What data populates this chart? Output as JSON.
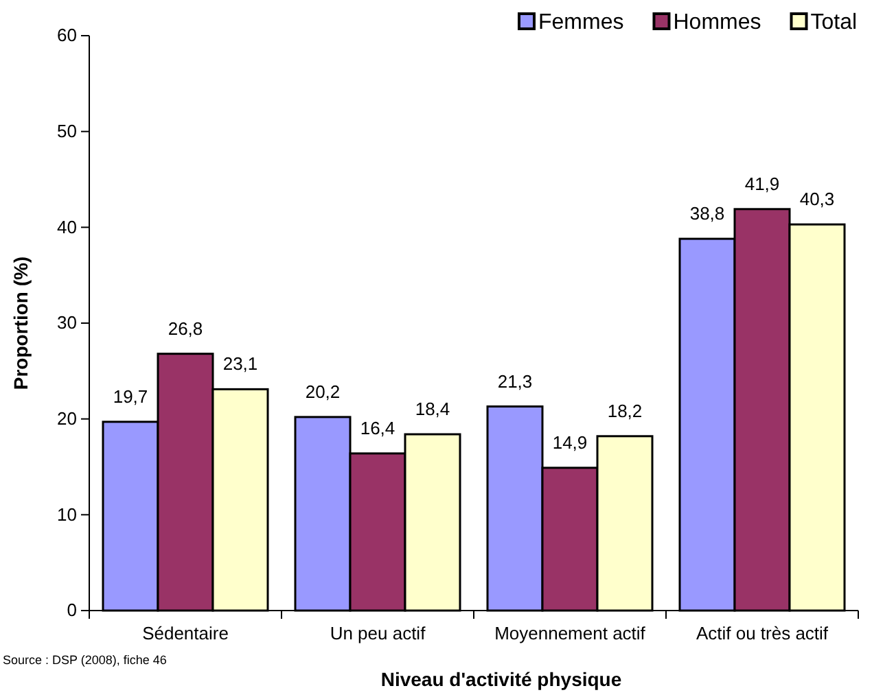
{
  "chart_data": {
    "type": "bar",
    "xlabel": "Niveau d'activité physique",
    "ylabel": "Proportion (%)",
    "categories": [
      "Sédentaire",
      "Un peu actif",
      "Moyennement actif",
      "Actif ou très actif"
    ],
    "series": [
      {
        "name": "Femmes",
        "color": "#9999ff",
        "values": [
          19.7,
          20.2,
          21.3,
          38.8
        ],
        "value_labels": [
          "19,7",
          "20,2",
          "21,3",
          "38,8"
        ]
      },
      {
        "name": "Hommes",
        "color": "#993366",
        "values": [
          26.8,
          16.4,
          14.9,
          41.9
        ],
        "value_labels": [
          "26,8",
          "16,4",
          "14,9",
          "41,9"
        ]
      },
      {
        "name": "Total",
        "color": "#ffffcc",
        "values": [
          23.1,
          18.4,
          18.2,
          40.3
        ],
        "value_labels": [
          "23,1",
          "18,4",
          "18,2",
          "40,3"
        ]
      }
    ],
    "ylim": [
      0,
      60
    ],
    "yticks": [
      0,
      10,
      20,
      30,
      40,
      50,
      60
    ],
    "grid": false,
    "legend": "top right",
    "annotations": [
      "Source : DSP (2008), fiche 46"
    ]
  }
}
